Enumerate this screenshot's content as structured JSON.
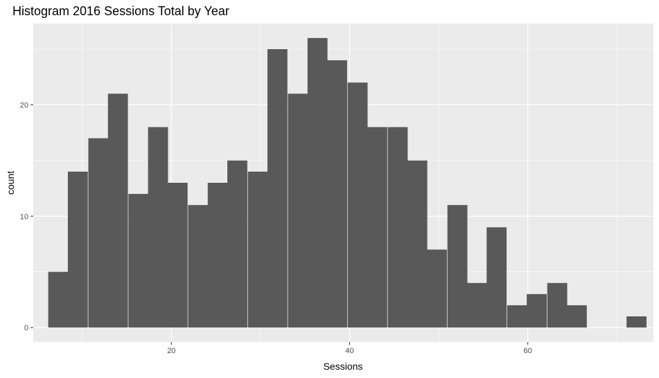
{
  "chart_data": {
    "type": "bar",
    "title": "Histogram 2016 Sessions Total by Year",
    "xlabel": "Sessions",
    "ylabel": "count",
    "x_ticks": [
      20,
      40,
      60
    ],
    "y_ticks": [
      0,
      10,
      20
    ],
    "xlim": [
      4.5,
      74.1
    ],
    "ylim": [
      -1.3,
      27.3
    ],
    "grid": true,
    "bin_width": 2.24,
    "bins": [
      {
        "x": 7.3,
        "count": 5
      },
      {
        "x": 9.5,
        "count": 14
      },
      {
        "x": 11.8,
        "count": 17
      },
      {
        "x": 14.0,
        "count": 21
      },
      {
        "x": 16.3,
        "count": 12
      },
      {
        "x": 18.5,
        "count": 18
      },
      {
        "x": 20.7,
        "count": 13
      },
      {
        "x": 23.0,
        "count": 11
      },
      {
        "x": 25.2,
        "count": 13
      },
      {
        "x": 27.4,
        "count": 15
      },
      {
        "x": 29.7,
        "count": 14
      },
      {
        "x": 31.9,
        "count": 25
      },
      {
        "x": 34.2,
        "count": 21
      },
      {
        "x": 36.4,
        "count": 26
      },
      {
        "x": 38.6,
        "count": 24
      },
      {
        "x": 40.9,
        "count": 22
      },
      {
        "x": 43.1,
        "count": 18
      },
      {
        "x": 45.4,
        "count": 18
      },
      {
        "x": 47.6,
        "count": 15
      },
      {
        "x": 49.8,
        "count": 7
      },
      {
        "x": 52.1,
        "count": 11
      },
      {
        "x": 54.3,
        "count": 4
      },
      {
        "x": 56.5,
        "count": 9
      },
      {
        "x": 58.8,
        "count": 2
      },
      {
        "x": 61.0,
        "count": 3
      },
      {
        "x": 63.3,
        "count": 4
      },
      {
        "x": 65.5,
        "count": 2
      },
      {
        "x": 67.7,
        "count": 0
      },
      {
        "x": 70.0,
        "count": 0
      },
      {
        "x": 72.2,
        "count": 1
      }
    ],
    "colors": {
      "panel_background": "#EBEBEB",
      "grid_major": "#FFFFFF",
      "bar_fill": "#595959",
      "tick_mark": "#333333"
    }
  }
}
